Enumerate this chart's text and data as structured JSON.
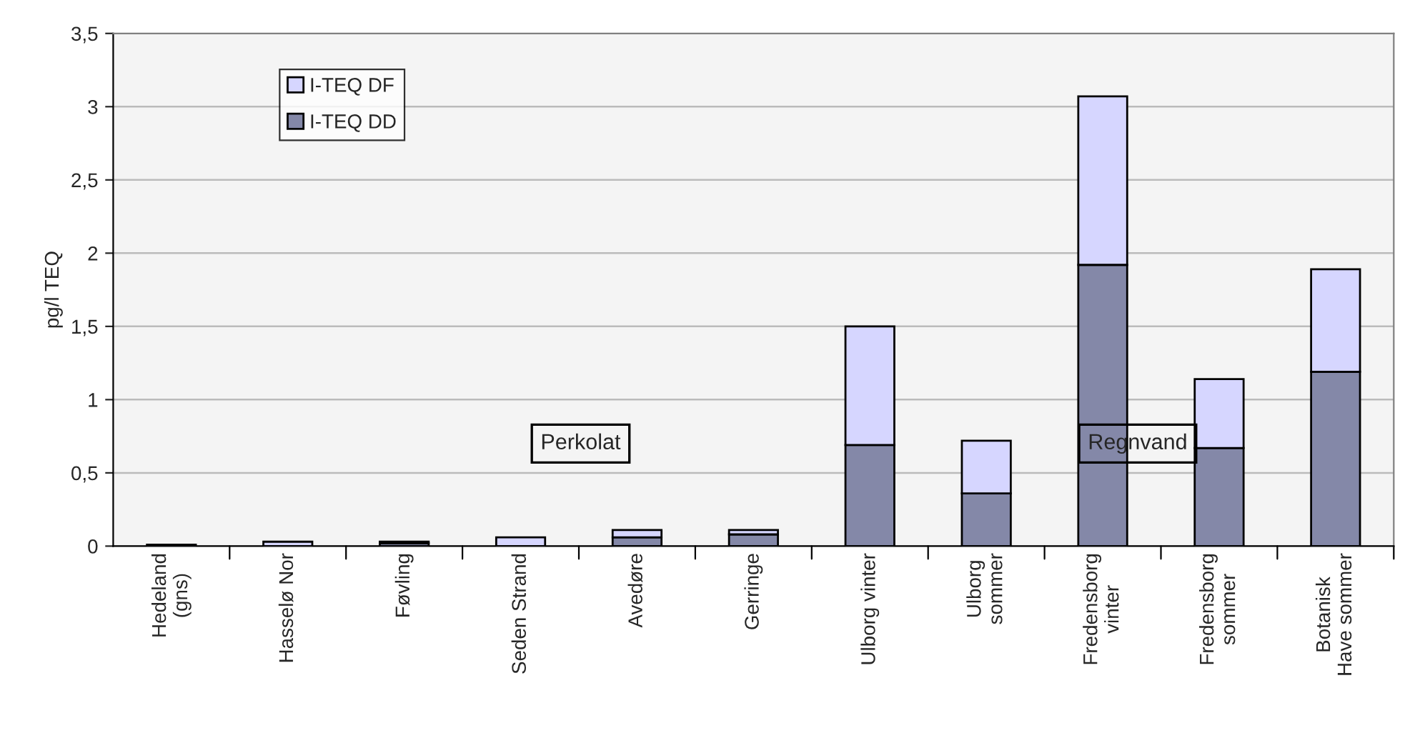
{
  "chart_data": {
    "type": "bar",
    "stacked": true,
    "ylabel": "pg/l TEQ",
    "categories": [
      "Hedeland\n(gns)",
      "Hasselø Nor",
      "Føvling",
      "Seden Strand",
      "Avedøre",
      "Gerringe",
      "Ulborg vinter",
      "Ulborg\nsommer",
      "Fredensborg\nvinter",
      "Fredensborg\nsommer",
      "Botanisk\nHave sommer"
    ],
    "series": [
      {
        "name": "I-TEQ DD",
        "color": "#8488a8",
        "values": [
          0.01,
          null,
          0.02,
          null,
          0.06,
          0.08,
          0.69,
          0.36,
          1.92,
          0.67,
          1.19
        ]
      },
      {
        "name": "I-TEQ DF",
        "color": "#d6d6ff",
        "values": [
          null,
          0.03,
          0.01,
          0.06,
          0.05,
          0.03,
          0.81,
          0.36,
          1.15,
          0.47,
          0.7
        ]
      }
    ],
    "ylim": [
      0,
      3.5
    ],
    "yticks": [
      0,
      {
        "value": 0.5,
        "label": "0,5"
      },
      1,
      {
        "value": 1.5,
        "label": "1,5"
      },
      2,
      {
        "value": 2.5,
        "label": "2,5"
      },
      3,
      {
        "value": 3.5,
        "label": "3,5"
      }
    ],
    "annotations": [
      "Perkolat",
      "Regnvand"
    ],
    "grid": "y",
    "legend": "top left"
  }
}
